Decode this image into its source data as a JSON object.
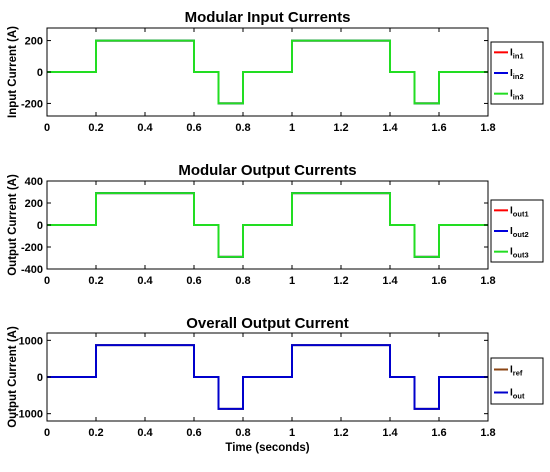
{
  "chart_data": [
    {
      "type": "line",
      "title": "Modular Input Currents",
      "xlabel": "",
      "ylabel": "Input Current (A)",
      "xlim": [
        0,
        1.8
      ],
      "ylim": [
        -280,
        280
      ],
      "xticks": [
        0,
        0.2,
        0.4,
        0.6,
        0.8,
        1,
        1.2,
        1.4,
        1.6,
        1.8
      ],
      "xtick_labels": [
        "0",
        "0.2",
        "0.4",
        "0.6",
        "0.8",
        "1",
        "1.2",
        "1.4",
        "1.6",
        "1.8"
      ],
      "yticks": [
        -200,
        0,
        200
      ],
      "ytick_labels": [
        "-200",
        "0",
        "200"
      ],
      "grid": false,
      "legend_placement": "outside-right",
      "series": [
        {
          "name": "I",
          "sub": "in1",
          "color": "#ff0000",
          "x": [
            0,
            0.2,
            0.2,
            0.6,
            0.6,
            0.7,
            0.7,
            0.8,
            0.8,
            1.0,
            1.0,
            1.4,
            1.4,
            1.5,
            1.5,
            1.6,
            1.6,
            1.8
          ],
          "y": [
            0,
            0,
            200,
            200,
            0,
            0,
            -200,
            -200,
            0,
            0,
            200,
            200,
            0,
            0,
            -200,
            -200,
            0,
            0
          ]
        },
        {
          "name": "I",
          "sub": "in2",
          "color": "#0000dd",
          "x": [
            0,
            0.2,
            0.2,
            0.6,
            0.6,
            0.7,
            0.7,
            0.8,
            0.8,
            1.0,
            1.0,
            1.4,
            1.4,
            1.5,
            1.5,
            1.6,
            1.6,
            1.8
          ],
          "y": [
            0,
            0,
            200,
            200,
            0,
            0,
            -200,
            -200,
            0,
            0,
            200,
            200,
            0,
            0,
            -200,
            -200,
            0,
            0
          ]
        },
        {
          "name": "I",
          "sub": "in3",
          "color": "#22dd22",
          "x": [
            0,
            0.2,
            0.2,
            0.6,
            0.6,
            0.7,
            0.7,
            0.8,
            0.8,
            1.0,
            1.0,
            1.4,
            1.4,
            1.5,
            1.5,
            1.6,
            1.6,
            1.8
          ],
          "y": [
            0,
            0,
            200,
            200,
            0,
            0,
            -200,
            -200,
            0,
            0,
            200,
            200,
            0,
            0,
            -200,
            -200,
            0,
            0
          ]
        }
      ]
    },
    {
      "type": "line",
      "title": "Modular Output Currents",
      "xlabel": "",
      "ylabel": "Output Current (A)",
      "xlim": [
        0,
        1.8
      ],
      "ylim": [
        -400,
        400
      ],
      "xticks": [
        0,
        0.2,
        0.4,
        0.6,
        0.8,
        1,
        1.2,
        1.4,
        1.6,
        1.8
      ],
      "xtick_labels": [
        "0",
        "0.2",
        "0.4",
        "0.6",
        "0.8",
        "1",
        "1.2",
        "1.4",
        "1.6",
        "1.8"
      ],
      "yticks": [
        -400,
        -200,
        0,
        200,
        400
      ],
      "ytick_labels": [
        "-400",
        "-200",
        "0",
        "200",
        "400"
      ],
      "grid": false,
      "legend_placement": "outside-right",
      "series": [
        {
          "name": "I",
          "sub": "out1",
          "color": "#ff0000",
          "x": [
            0,
            0.2,
            0.2,
            0.6,
            0.6,
            0.7,
            0.7,
            0.8,
            0.8,
            1.0,
            1.0,
            1.4,
            1.4,
            1.5,
            1.5,
            1.6,
            1.6,
            1.8
          ],
          "y": [
            0,
            0,
            290,
            290,
            0,
            0,
            -290,
            -290,
            0,
            0,
            290,
            290,
            0,
            0,
            -290,
            -290,
            0,
            0
          ]
        },
        {
          "name": "I",
          "sub": "out2",
          "color": "#0000dd",
          "x": [
            0,
            0.2,
            0.2,
            0.6,
            0.6,
            0.7,
            0.7,
            0.8,
            0.8,
            1.0,
            1.0,
            1.4,
            1.4,
            1.5,
            1.5,
            1.6,
            1.6,
            1.8
          ],
          "y": [
            0,
            0,
            290,
            290,
            0,
            0,
            -290,
            -290,
            0,
            0,
            290,
            290,
            0,
            0,
            -290,
            -290,
            0,
            0
          ]
        },
        {
          "name": "I",
          "sub": "out3",
          "color": "#22dd22",
          "x": [
            0,
            0.2,
            0.2,
            0.6,
            0.6,
            0.7,
            0.7,
            0.8,
            0.8,
            1.0,
            1.0,
            1.4,
            1.4,
            1.5,
            1.5,
            1.6,
            1.6,
            1.8
          ],
          "y": [
            0,
            0,
            290,
            290,
            0,
            0,
            -290,
            -290,
            0,
            0,
            290,
            290,
            0,
            0,
            -290,
            -290,
            0,
            0
          ]
        }
      ]
    },
    {
      "type": "line",
      "title": "Overall Output Current",
      "xlabel": "Time (seconds)",
      "ylabel": "Output Current (A)",
      "xlim": [
        0,
        1.8
      ],
      "ylim": [
        -1200,
        1200
      ],
      "xticks": [
        0,
        0.2,
        0.4,
        0.6,
        0.8,
        1,
        1.2,
        1.4,
        1.6,
        1.8
      ],
      "xtick_labels": [
        "0",
        "0.2",
        "0.4",
        "0.6",
        "0.8",
        "1",
        "1.2",
        "1.4",
        "1.6",
        "1.8"
      ],
      "yticks": [
        -1000,
        0,
        1000
      ],
      "ytick_labels": [
        "-1000",
        "0",
        "1000"
      ],
      "grid": false,
      "legend_placement": "outside-right",
      "series": [
        {
          "name": "I",
          "sub": "ref",
          "color": "#8b4513",
          "x": [
            0,
            0.2,
            0.2,
            0.6,
            0.6,
            0.7,
            0.7,
            0.8,
            0.8,
            1.0,
            1.0,
            1.4,
            1.4,
            1.5,
            1.5,
            1.6,
            1.6,
            1.8
          ],
          "y": [
            0,
            0,
            870,
            870,
            0,
            0,
            -870,
            -870,
            0,
            0,
            870,
            870,
            0,
            0,
            -870,
            -870,
            0,
            0
          ]
        },
        {
          "name": "I",
          "sub": "out",
          "color": "#0000cc",
          "x": [
            0,
            0.2,
            0.2,
            0.6,
            0.6,
            0.7,
            0.7,
            0.8,
            0.8,
            1.0,
            1.0,
            1.4,
            1.4,
            1.5,
            1.5,
            1.6,
            1.6,
            1.8
          ],
          "y": [
            0,
            0,
            870,
            870,
            0,
            0,
            -870,
            -870,
            0,
            0,
            870,
            870,
            0,
            0,
            -870,
            -870,
            0,
            0
          ]
        }
      ]
    }
  ]
}
